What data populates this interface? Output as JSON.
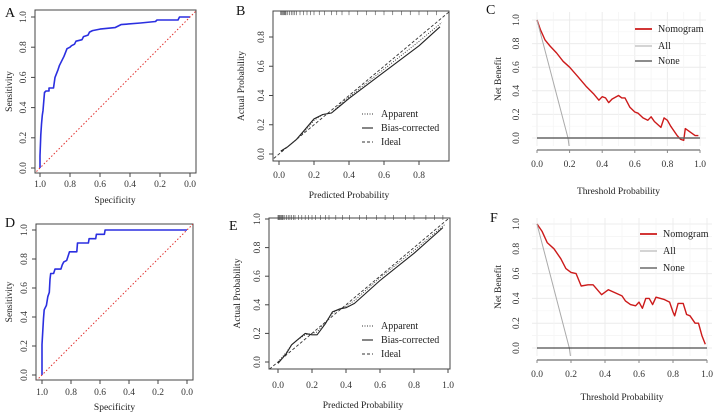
{
  "colors": {
    "roc": "#2b2fe0",
    "diag": "#e0302e",
    "nomogram": "#cc1a1a",
    "all": "#aaaaaa",
    "none_c": "#666666",
    "none_f": "#222222"
  },
  "chart_data": [
    {
      "id": "A",
      "type": "line",
      "panel_label": "A",
      "xlabel": "Specificity",
      "ylabel": "Sensitivity",
      "xlim": [
        1,
        0
      ],
      "ylim": [
        0,
        1
      ],
      "xticks": [
        "1.0",
        "0.8",
        "0.6",
        "0.4",
        "0.2",
        "0.0"
      ],
      "xtick_values": [
        1,
        0.8,
        0.6,
        0.4,
        0.2,
        0
      ],
      "yticks": [
        "0.0",
        "0.2",
        "0.4",
        "0.6",
        "0.8",
        "1.0"
      ],
      "ytick_values": [
        0,
        0.2,
        0.4,
        0.6,
        0.8,
        1
      ],
      "series": [
        {
          "name": "ROC",
          "style": "roc",
          "x": [
            1,
            1,
            0.995,
            0.99,
            0.985,
            0.98,
            0.97,
            0.96,
            0.94,
            0.94,
            0.91,
            0.9,
            0.88,
            0.87,
            0.86,
            0.84,
            0.82,
            0.8,
            0.79,
            0.77,
            0.76,
            0.72,
            0.71,
            0.68,
            0.67,
            0.65,
            0.6,
            0.5,
            0.46,
            0.33,
            0.23,
            0.22,
            0.08,
            0.07,
            0
          ],
          "y": [
            0,
            0.08,
            0.22,
            0.29,
            0.35,
            0.38,
            0.5,
            0.51,
            0.51,
            0.53,
            0.53,
            0.6,
            0.65,
            0.68,
            0.7,
            0.74,
            0.79,
            0.8,
            0.81,
            0.82,
            0.84,
            0.85,
            0.87,
            0.88,
            0.9,
            0.91,
            0.92,
            0.93,
            0.95,
            0.96,
            0.97,
            0.98,
            0.98,
            1,
            1
          ]
        },
        {
          "name": "Reference",
          "style": "diag",
          "x": [
            1.04,
            -0.04
          ],
          "y": [
            -0.04,
            1.04
          ]
        }
      ]
    },
    {
      "id": "B",
      "type": "line",
      "panel_label": "B",
      "xlabel": "Predicted Probability",
      "ylabel": "Actual Probability",
      "xlim": [
        -0.03,
        0.97
      ],
      "ylim": [
        -0.03,
        0.97
      ],
      "xticks": [
        "0.0",
        "0.2",
        "0.4",
        "0.6",
        "0.8"
      ],
      "xtick_values": [
        0,
        0.2,
        0.4,
        0.6,
        0.8
      ],
      "yticks": [
        "0.0",
        "0.2",
        "0.4",
        "0.6",
        "0.8"
      ],
      "ytick_values": [
        0,
        0.2,
        0.4,
        0.6,
        0.8
      ],
      "legend": [
        "Apparent",
        "Bias-corrected",
        "Ideal"
      ],
      "legend_position": "bottom-right",
      "rug_y": 0.95,
      "rug_x": [
        0.01,
        0.015,
        0.02,
        0.025,
        0.03,
        0.035,
        0.04,
        0.05,
        0.06,
        0.07,
        0.08,
        0.09,
        0.1,
        0.12,
        0.14,
        0.16,
        0.18,
        0.2,
        0.23,
        0.26,
        0.3,
        0.33,
        0.36,
        0.4,
        0.45,
        0.5,
        0.55,
        0.6,
        0.65,
        0.7,
        0.75,
        0.8,
        0.85,
        0.9
      ],
      "series": [
        {
          "name": "Apparent",
          "style": "dotted",
          "x": [
            0.01,
            0.05,
            0.1,
            0.15,
            0.2,
            0.25,
            0.3,
            0.35,
            0.4,
            0.6,
            0.8,
            0.93
          ],
          "y": [
            0.02,
            0.05,
            0.1,
            0.16,
            0.23,
            0.27,
            0.28,
            0.34,
            0.39,
            0.58,
            0.77,
            0.9
          ]
        },
        {
          "name": "Bias-corrected",
          "style": "solid",
          "x": [
            0.01,
            0.05,
            0.1,
            0.15,
            0.2,
            0.25,
            0.3,
            0.35,
            0.4,
            0.6,
            0.8,
            0.92
          ],
          "y": [
            0.02,
            0.05,
            0.1,
            0.17,
            0.24,
            0.27,
            0.28,
            0.33,
            0.38,
            0.56,
            0.74,
            0.87
          ]
        },
        {
          "name": "Ideal",
          "style": "dashed",
          "x": [
            -0.03,
            0.97
          ],
          "y": [
            -0.03,
            0.97
          ]
        }
      ]
    },
    {
      "id": "C",
      "type": "line",
      "panel_label": "C",
      "xlabel": "Threshold Probability",
      "ylabel": "Net Benefit",
      "xlim": [
        0,
        1
      ],
      "ylim": [
        -0.1,
        1
      ],
      "xticks": [
        "0.0",
        "0.2",
        "0.4",
        "0.6",
        "0.8",
        "1.0"
      ],
      "xtick_values": [
        0,
        0.2,
        0.4,
        0.6,
        0.8,
        1
      ],
      "yticks": [
        "0.0",
        "0.2",
        "0.4",
        "0.6",
        "0.8",
        "1.0"
      ],
      "ytick_values": [
        0,
        0.2,
        0.4,
        0.6,
        0.8,
        1
      ],
      "legend": [
        "Nomogram",
        "All",
        "None"
      ],
      "legend_position": "top-right",
      "series": [
        {
          "name": "Nomogram",
          "style": "nomogram",
          "x": [
            0,
            0.02,
            0.05,
            0.08,
            0.12,
            0.16,
            0.2,
            0.25,
            0.3,
            0.35,
            0.38,
            0.4,
            0.42,
            0.44,
            0.46,
            0.5,
            0.52,
            0.54,
            0.57,
            0.6,
            0.62,
            0.65,
            0.68,
            0.7,
            0.72,
            0.76,
            0.78,
            0.8,
            0.82,
            0.86,
            0.88,
            0.9,
            0.91,
            0.94,
            0.97,
            0.99
          ],
          "y": [
            1,
            0.92,
            0.83,
            0.78,
            0.72,
            0.65,
            0.6,
            0.52,
            0.44,
            0.37,
            0.32,
            0.35,
            0.34,
            0.3,
            0.33,
            0.36,
            0.34,
            0.34,
            0.26,
            0.22,
            0.21,
            0.17,
            0.15,
            0.18,
            0.14,
            0.09,
            0.17,
            0.15,
            0.1,
            0.02,
            -0.01,
            -0.02,
            0.08,
            0.05,
            0.02,
            0.02
          ]
        },
        {
          "name": "All",
          "style": "all",
          "x": [
            0,
            0.19,
            0.2
          ],
          "y": [
            1,
            0,
            -0.1
          ]
        },
        {
          "name": "None",
          "style": "none_c",
          "x": [
            0,
            1
          ],
          "y": [
            0,
            0
          ]
        }
      ]
    },
    {
      "id": "D",
      "type": "line",
      "panel_label": "D",
      "xlabel": "Specificity",
      "ylabel": "Sensitivity",
      "xlim": [
        1,
        0
      ],
      "ylim": [
        0,
        1
      ],
      "xticks": [
        "1.0",
        "0.8",
        "0.6",
        "0.4",
        "0.2",
        "0.0"
      ],
      "xtick_values": [
        1,
        0.8,
        0.6,
        0.4,
        0.2,
        0
      ],
      "yticks": [
        "0.0",
        "0.2",
        "0.4",
        "0.6",
        "0.8",
        "1.0"
      ],
      "ytick_values": [
        0,
        0.2,
        0.4,
        0.6,
        0.8,
        1
      ],
      "series": [
        {
          "name": "ROC",
          "style": "roc",
          "x": [
            1,
            1,
            0.99,
            0.985,
            0.97,
            0.965,
            0.96,
            0.95,
            0.945,
            0.94,
            0.92,
            0.91,
            0.87,
            0.86,
            0.85,
            0.83,
            0.82,
            0.81,
            0.76,
            0.755,
            0.68,
            0.675,
            0.63,
            0.625,
            0.57,
            0.565,
            0
          ],
          "y": [
            0,
            0.21,
            0.39,
            0.45,
            0.48,
            0.51,
            0.54,
            0.57,
            0.66,
            0.7,
            0.7,
            0.73,
            0.73,
            0.76,
            0.78,
            0.79,
            0.82,
            0.85,
            0.85,
            0.91,
            0.91,
            0.94,
            0.94,
            0.97,
            0.97,
            1,
            1
          ]
        },
        {
          "name": "Reference",
          "style": "diag",
          "x": [
            1.04,
            -0.04
          ],
          "y": [
            -0.04,
            1.04
          ]
        }
      ]
    },
    {
      "id": "E",
      "type": "line",
      "panel_label": "E",
      "xlabel": "Predicted Probability",
      "ylabel": "Actual Probability",
      "xlim": [
        -0.05,
        1.0
      ],
      "ylim": [
        -0.05,
        1.0
      ],
      "xticks": [
        "0.0",
        "0.2",
        "0.4",
        "0.6",
        "0.8",
        "1.0"
      ],
      "xtick_values": [
        0,
        0.2,
        0.4,
        0.6,
        0.8,
        1
      ],
      "yticks": [
        "0.0",
        "0.2",
        "0.4",
        "0.6",
        "0.8",
        "1.0"
      ],
      "ytick_values": [
        0,
        0.2,
        0.4,
        0.6,
        0.8,
        1
      ],
      "legend": [
        "Apparent",
        "Bias-corrected",
        "Ideal"
      ],
      "legend_position": "bottom-right",
      "rug_y": 1.0,
      "rug_x": [
        0,
        0.005,
        0.01,
        0.015,
        0.02,
        0.025,
        0.03,
        0.04,
        0.05,
        0.06,
        0.07,
        0.08,
        0.09,
        0.1,
        0.12,
        0.14,
        0.16,
        0.18,
        0.2,
        0.22,
        0.25,
        0.28,
        0.3,
        0.34,
        0.38,
        0.42,
        0.48,
        0.52,
        0.58,
        0.63,
        0.68,
        0.75,
        0.8,
        0.87,
        0.92,
        0.97
      ],
      "series": [
        {
          "name": "Apparent",
          "style": "dotted",
          "x": [
            0,
            0.05,
            0.08,
            0.12,
            0.16,
            0.2,
            0.23,
            0.28,
            0.32,
            0.36,
            0.4,
            0.45,
            0.6,
            0.8,
            0.98
          ],
          "y": [
            0,
            0.07,
            0.12,
            0.16,
            0.19,
            0.2,
            0.21,
            0.28,
            0.34,
            0.37,
            0.39,
            0.43,
            0.59,
            0.78,
            0.96
          ]
        },
        {
          "name": "Bias-corrected",
          "style": "solid",
          "x": [
            0,
            0.05,
            0.08,
            0.12,
            0.16,
            0.2,
            0.23,
            0.28,
            0.32,
            0.36,
            0.4,
            0.45,
            0.6,
            0.8,
            0.97
          ],
          "y": [
            -0.01,
            0.06,
            0.12,
            0.16,
            0.2,
            0.19,
            0.19,
            0.27,
            0.35,
            0.37,
            0.38,
            0.41,
            0.57,
            0.76,
            0.94
          ]
        },
        {
          "name": "Ideal",
          "style": "dashed",
          "x": [
            -0.05,
            1.0
          ],
          "y": [
            -0.05,
            1.0
          ]
        }
      ]
    },
    {
      "id": "F",
      "type": "line",
      "panel_label": "F",
      "xlabel": "Threshold Probability",
      "ylabel": "Net Benefit",
      "xlim": [
        0,
        1
      ],
      "ylim": [
        -0.1,
        1
      ],
      "xticks": [
        "0.0",
        "0.2",
        "0.4",
        "0.6",
        "0.8",
        "1.0"
      ],
      "xtick_values": [
        0,
        0.2,
        0.4,
        0.6,
        0.8,
        1
      ],
      "yticks": [
        "0.0",
        "0.2",
        "0.4",
        "0.6",
        "0.8",
        "1.0"
      ],
      "ytick_values": [
        0,
        0.2,
        0.4,
        0.6,
        0.8,
        1
      ],
      "legend": [
        "Nomogram",
        "All",
        "None"
      ],
      "legend_position": "top-right",
      "series": [
        {
          "name": "Nomogram",
          "style": "nomogram",
          "x": [
            0,
            0.03,
            0.06,
            0.1,
            0.14,
            0.17,
            0.2,
            0.23,
            0.26,
            0.3,
            0.33,
            0.38,
            0.42,
            0.5,
            0.52,
            0.55,
            0.58,
            0.6,
            0.62,
            0.64,
            0.66,
            0.68,
            0.7,
            0.75,
            0.78,
            0.8,
            0.81,
            0.83,
            0.86,
            0.88,
            0.9,
            0.93,
            0.95,
            0.97,
            0.99
          ],
          "y": [
            1,
            0.94,
            0.85,
            0.8,
            0.72,
            0.64,
            0.61,
            0.6,
            0.5,
            0.51,
            0.51,
            0.43,
            0.47,
            0.42,
            0.38,
            0.35,
            0.34,
            0.37,
            0.32,
            0.4,
            0.4,
            0.35,
            0.41,
            0.39,
            0.37,
            0.29,
            0.26,
            0.36,
            0.36,
            0.27,
            0.26,
            0.2,
            0.2,
            0.1,
            0.03
          ]
        },
        {
          "name": "All",
          "style": "all",
          "x": [
            0,
            0.19,
            0.2
          ],
          "y": [
            1,
            0,
            -0.1
          ]
        },
        {
          "name": "None",
          "style": "none_f",
          "x": [
            0,
            1
          ],
          "y": [
            0,
            0
          ]
        }
      ]
    }
  ]
}
